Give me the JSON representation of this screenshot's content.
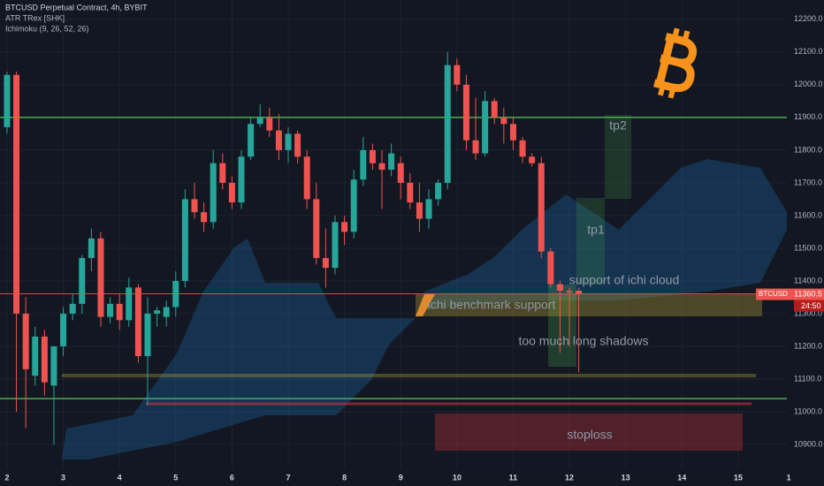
{
  "header": {
    "symbol": "BTCUSD Perpetual Contract, 4h, BYBIT",
    "indicator_1": "ATR TRex [SHK]",
    "indicator_2": "Ichimoku (9, 26, 52, 26)"
  },
  "chart_data": {
    "type": "candlestick",
    "series": [
      {
        "name": "BTCUSD",
        "up_color": "#26a69a",
        "down_color": "#ef5350",
        "open": [
          11870,
          12030,
          11300,
          11110,
          11230,
          11080,
          11200,
          11300,
          11330,
          11470,
          11530,
          11290,
          11330,
          11280,
          11380,
          11170,
          11300,
          11290,
          11320,
          11400,
          11650,
          11610,
          11580,
          11760,
          11700,
          11640,
          11780,
          11880,
          11900,
          11860,
          11800,
          11850,
          11780,
          11650,
          11470,
          11440,
          11580,
          11550,
          11710,
          11800,
          11760,
          11740,
          11760,
          11700,
          11640,
          11590,
          11650,
          11700,
          12060,
          12000,
          11830,
          11790,
          11950,
          11900,
          11880,
          11830,
          11780,
          11760,
          11490,
          11390,
          11370,
          11370
        ],
        "high": [
          12040,
          12040,
          11350,
          11260,
          11250,
          11200,
          11320,
          11360,
          11480,
          11560,
          11550,
          11350,
          11360,
          11410,
          11390,
          11350,
          11320,
          11340,
          11430,
          11680,
          11700,
          11640,
          11800,
          11790,
          11720,
          11800,
          11900,
          11940,
          11930,
          11910,
          11870,
          11860,
          11800,
          11700,
          11560,
          11600,
          11600,
          11740,
          11840,
          11820,
          11800,
          11820,
          11780,
          11730,
          11700,
          11680,
          11710,
          12100,
          12080,
          12030,
          11960,
          11980,
          11960,
          11930,
          11900,
          11840,
          11790,
          11780,
          11500,
          11400,
          11380,
          11380
        ],
        "low": [
          11850,
          11000,
          10950,
          11080,
          11050,
          10900,
          11170,
          11280,
          11300,
          11430,
          11260,
          11270,
          11250,
          11260,
          11150,
          11020,
          11260,
          11260,
          11290,
          11380,
          11590,
          11550,
          11560,
          11680,
          11620,
          11620,
          11770,
          11870,
          11840,
          11770,
          11760,
          11760,
          11620,
          11450,
          11380,
          11420,
          11510,
          11530,
          11690,
          11740,
          11620,
          11720,
          11650,
          11620,
          11550,
          11560,
          11630,
          11680,
          11980,
          11800,
          11770,
          11780,
          11880,
          11820,
          11800,
          11760,
          11750,
          11470,
          11380,
          11180,
          11200,
          11120
        ],
        "close": [
          12030,
          11300,
          11130,
          11230,
          11090,
          11200,
          11300,
          11330,
          11470,
          11530,
          11290,
          11330,
          11280,
          11380,
          11170,
          11300,
          11310,
          11320,
          11400,
          11650,
          11610,
          11580,
          11760,
          11700,
          11640,
          11780,
          11880,
          11900,
          11860,
          11800,
          11850,
          11780,
          11650,
          11470,
          11440,
          11580,
          11550,
          11710,
          11800,
          11760,
          11740,
          11790,
          11700,
          11640,
          11590,
          11650,
          11700,
          12060,
          12000,
          11830,
          11790,
          11950,
          11900,
          11880,
          11830,
          11780,
          11760,
          11490,
          11390,
          11370,
          11365,
          11360
        ]
      }
    ],
    "xlim": [
      -0.75,
      83.2
    ],
    "xticks": [
      {
        "value": 0,
        "label": "2"
      },
      {
        "value": 6,
        "label": "3"
      },
      {
        "value": 12,
        "label": "4"
      },
      {
        "value": 18,
        "label": "5"
      },
      {
        "value": 24,
        "label": "6"
      },
      {
        "value": 30,
        "label": "7"
      },
      {
        "value": 36,
        "label": "8"
      },
      {
        "value": 42,
        "label": "9"
      },
      {
        "value": 48,
        "label": "10"
      },
      {
        "value": 54,
        "label": "11"
      },
      {
        "value": 60,
        "label": "12"
      },
      {
        "value": 66,
        "label": "13"
      },
      {
        "value": 72,
        "label": "14"
      },
      {
        "value": 78,
        "label": "15"
      },
      {
        "value": 83.4,
        "label": "1"
      }
    ],
    "ylim": [
      10827,
      12259
    ],
    "yticks": [
      {
        "value": 10900,
        "label": "10900.0"
      },
      {
        "value": 11000,
        "label": "11000.0"
      },
      {
        "value": 11100,
        "label": "11100.0"
      },
      {
        "value": 11200,
        "label": "11200.0"
      },
      {
        "value": 11300,
        "label": "11300.0"
      },
      {
        "value": 11400,
        "label": "11400.0"
      },
      {
        "value": 11500,
        "label": "11500.0"
      },
      {
        "value": 11600,
        "label": "11600.0"
      },
      {
        "value": 11700,
        "label": "11700.0"
      },
      {
        "value": 11800,
        "label": "11800.0"
      },
      {
        "value": 11900,
        "label": "11900.0"
      },
      {
        "value": 12000,
        "label": "12000.0"
      },
      {
        "value": 12100,
        "label": "12100.0"
      },
      {
        "value": 12200,
        "label": "12200.0"
      }
    ],
    "levels": [
      11900,
      11040
    ],
    "level_color": "#4caf50",
    "last_price": 11360.5,
    "timer": "24:50",
    "annotations": {
      "tp2": "tp2",
      "tp1": "tp1",
      "support": "support of ichi cloud",
      "benchmark": "ichi benchmark support",
      "shadows": "too much long shadows",
      "stoploss": "stoploss"
    }
  }
}
